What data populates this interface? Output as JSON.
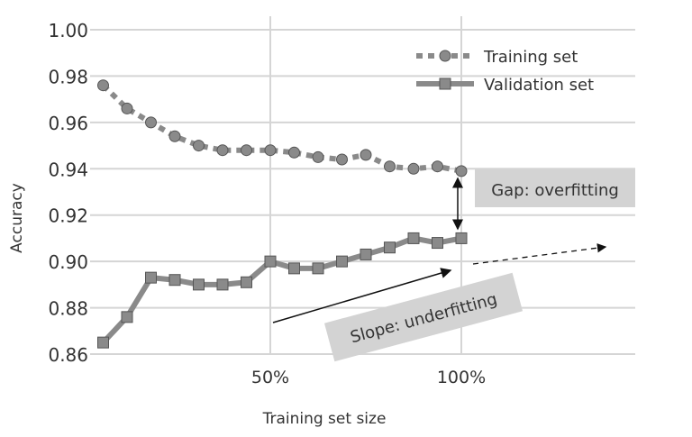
{
  "chart_data": {
    "type": "line",
    "title": "",
    "xlabel": "Training set size",
    "ylabel": "Accuracy",
    "x": [
      6.25,
      12.5,
      18.75,
      25,
      31.25,
      37.5,
      43.75,
      50,
      56.25,
      62.5,
      68.75,
      75,
      81.25,
      87.5,
      93.75,
      100
    ],
    "xlim": [
      0,
      145
    ],
    "ylim": [
      0.86,
      1.0
    ],
    "x_ticks": [
      {
        "value": 50,
        "label": "50%"
      },
      {
        "value": 100,
        "label": "100%"
      }
    ],
    "y_ticks": [
      {
        "value": 1.0,
        "label": "1.00"
      },
      {
        "value": 0.98,
        "label": "0.98"
      },
      {
        "value": 0.96,
        "label": "0.96"
      },
      {
        "value": 0.94,
        "label": "0.94"
      },
      {
        "value": 0.92,
        "label": "0.92"
      },
      {
        "value": 0.9,
        "label": "0.90"
      },
      {
        "value": 0.88,
        "label": "0.88"
      },
      {
        "value": 0.86,
        "label": "0.86"
      }
    ],
    "grid": true,
    "legend_placement": "top-right",
    "series": [
      {
        "name": "Training set",
        "marker": "circle",
        "style": "dotted",
        "color": "#8a8a8a",
        "values": [
          0.976,
          0.966,
          0.96,
          0.954,
          0.95,
          0.948,
          0.948,
          0.948,
          0.947,
          0.945,
          0.944,
          0.946,
          0.941,
          0.94,
          0.941,
          0.939
        ]
      },
      {
        "name": "Validation set",
        "marker": "square",
        "style": "solid",
        "color": "#8a8a8a",
        "values": [
          0.865,
          0.876,
          0.893,
          0.892,
          0.89,
          0.89,
          0.891,
          0.9,
          0.897,
          0.897,
          0.9,
          0.903,
          0.906,
          0.91,
          0.908,
          0.91
        ]
      }
    ],
    "annotations": {
      "gap": "Gap: overfitting",
      "slope": "Slope: underfitting"
    }
  }
}
